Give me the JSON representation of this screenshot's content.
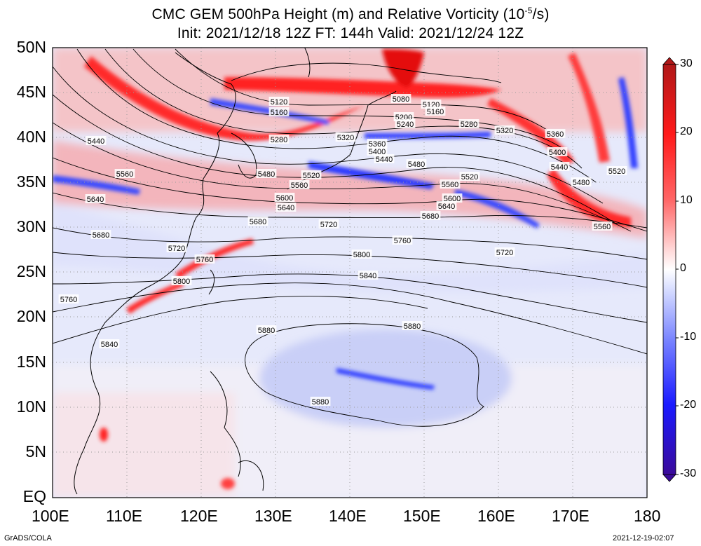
{
  "title": {
    "line1_pre": "CMC GEM 500hPa Height (m) and Relative Vorticity (10",
    "line1_exp": "-5",
    "line1_post": "/s)",
    "line2": "Init: 2021/12/18 12Z  FT: 144h  Valid: 2021/12/24 12Z"
  },
  "axes": {
    "y_labels": [
      "50N",
      "45N",
      "40N",
      "35N",
      "30N",
      "25N",
      "20N",
      "15N",
      "10N",
      "5N",
      "EQ"
    ],
    "x_labels": [
      "100E",
      "110E",
      "120E",
      "130E",
      "140E",
      "150E",
      "160E",
      "170E",
      "180"
    ]
  },
  "colorbar": {
    "labels": [
      "30",
      "20",
      "10",
      "0",
      "-10",
      "-20",
      "-30"
    ],
    "colors": {
      "max": "#b01818",
      "pos": "#ff2a2a",
      "light_pos": "#ffb0b0",
      "zero": "#ffffff",
      "light_neg": "#b8c0ff",
      "neg": "#2a2aff",
      "min": "#3a0a9a"
    }
  },
  "contour_labels": [
    {
      "text": "5080"
    },
    {
      "text": "5120"
    },
    {
      "text": "5120"
    },
    {
      "text": "5160"
    },
    {
      "text": "5160"
    },
    {
      "text": "5200"
    },
    {
      "text": "5240"
    },
    {
      "text": "5280"
    },
    {
      "text": "5280"
    },
    {
      "text": "5320"
    },
    {
      "text": "5320"
    },
    {
      "text": "5360"
    },
    {
      "text": "5360"
    },
    {
      "text": "5400"
    },
    {
      "text": "5400"
    },
    {
      "text": "5440"
    },
    {
      "text": "5440"
    },
    {
      "text": "5440"
    },
    {
      "text": "5480"
    },
    {
      "text": "5480"
    },
    {
      "text": "5480"
    },
    {
      "text": "5520"
    },
    {
      "text": "5520"
    },
    {
      "text": "5520"
    },
    {
      "text": "5560"
    },
    {
      "text": "5560"
    },
    {
      "text": "5560"
    },
    {
      "text": "5560"
    },
    {
      "text": "5600"
    },
    {
      "text": "5600"
    },
    {
      "text": "5640"
    },
    {
      "text": "5640"
    },
    {
      "text": "5640"
    },
    {
      "text": "5680"
    },
    {
      "text": "5680"
    },
    {
      "text": "5680"
    },
    {
      "text": "5720"
    },
    {
      "text": "5720"
    },
    {
      "text": "5720"
    },
    {
      "text": "5760"
    },
    {
      "text": "5760"
    },
    {
      "text": "5760"
    },
    {
      "text": "5800"
    },
    {
      "text": "5800"
    },
    {
      "text": "5840"
    },
    {
      "text": "5840"
    },
    {
      "text": "5880"
    },
    {
      "text": "5880"
    },
    {
      "text": "5880"
    }
  ],
  "footer": {
    "left": "GrADS/COLA",
    "right": "2021-12-19-02:07"
  }
}
